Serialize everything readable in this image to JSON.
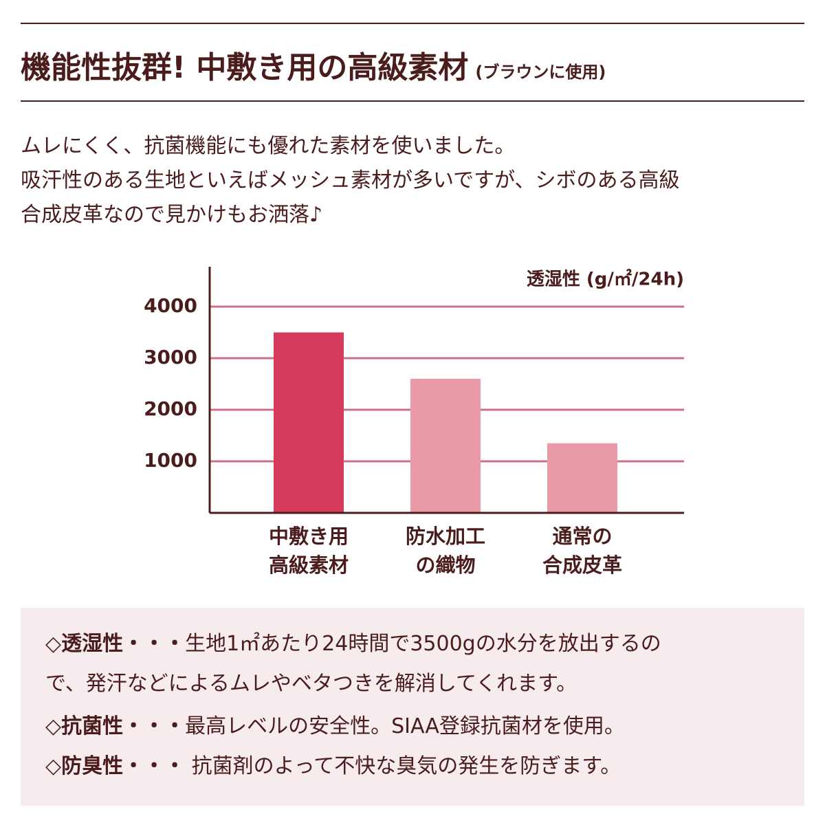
{
  "header": {
    "title": "機能性抜群! 中敷き用の高級素材",
    "subtitle": "(ブラウンに使用)"
  },
  "intro": [
    "ムレにくく、抗菌機能にも優れた素材を使いました。",
    "吸汗性のある生地といえばメッシュ素材が多いですが、シボのある高級",
    "合成皮革なので見かけもお洒落♪"
  ],
  "chart_data": {
    "type": "bar",
    "y_label": "透湿性 (g/㎡/24h)",
    "categories": [
      [
        "中敷き用",
        "高級素材"
      ],
      [
        "防水加工",
        "の織物"
      ],
      [
        "通常の",
        "合成皮革"
      ]
    ],
    "values": [
      3500,
      2600,
      1350
    ],
    "colors": [
      "#d63a5a",
      "#e99ba7",
      "#e99ba7"
    ],
    "ylim": [
      0,
      4800
    ],
    "yticks": [
      1000,
      2000,
      3000,
      4000
    ],
    "grid": true
  },
  "notes": {
    "bullet": "◇",
    "separator": "・・・",
    "items": [
      {
        "label": "透湿性",
        "text": [
          "生地1㎡あたり24時間で3500gの水分を放出するの",
          "で、発汗などによるムレやベタつきを解消してくれます。"
        ]
      },
      {
        "label": "抗菌性",
        "text": [
          "最高レベルの安全性。SIAA登録抗菌材を使用。"
        ]
      },
      {
        "label": "防臭性",
        "text": [
          " 抗菌剤のよって不快な臭気の発生を防ぎます。"
        ]
      }
    ]
  }
}
